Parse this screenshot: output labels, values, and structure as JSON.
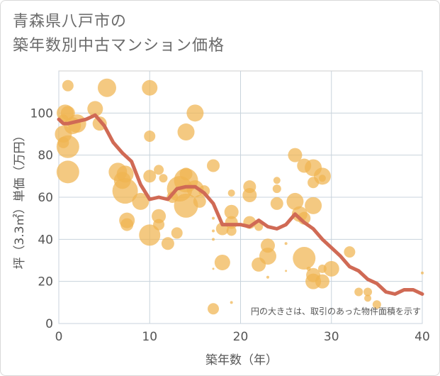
{
  "title": {
    "line1": "青森県八戸市の",
    "line2": "築年数別中古マンション価格"
  },
  "colors": {
    "bubble": "#f0b450",
    "line": "#d06a55",
    "grid": "#c8d3dc",
    "plot_border": "#cfcfcf"
  },
  "chart_data": {
    "type": "scatter",
    "xlabel": "築年数（年）",
    "ylabel": "坪（3.3㎡）単価（万円）",
    "xlim": [
      0,
      40
    ],
    "ylim": [
      0,
      120
    ],
    "xticks": [
      0,
      10,
      20,
      30,
      40
    ],
    "yticks": [
      0,
      20,
      40,
      60,
      80,
      100
    ],
    "grid": true,
    "note": "円の大きさは、取引のあった物件面積を示す",
    "bubbles": [
      {
        "x": 0.5,
        "y": 90,
        "s": 12
      },
      {
        "x": 0.5,
        "y": 86,
        "s": 8
      },
      {
        "x": 0.5,
        "y": 97,
        "s": 7
      },
      {
        "x": 0.7,
        "y": 100,
        "s": 12
      },
      {
        "x": 1,
        "y": 113,
        "s": 8
      },
      {
        "x": 1,
        "y": 100,
        "s": 10
      },
      {
        "x": 1,
        "y": 84,
        "s": 16
      },
      {
        "x": 1,
        "y": 72,
        "s": 16
      },
      {
        "x": 1.5,
        "y": 94,
        "s": 12
      },
      {
        "x": 2,
        "y": 95,
        "s": 13
      },
      {
        "x": 4,
        "y": 102,
        "s": 11
      },
      {
        "x": 4.5,
        "y": 95,
        "s": 10
      },
      {
        "x": 5.3,
        "y": 112,
        "s": 13
      },
      {
        "x": 6.5,
        "y": 72,
        "s": 13
      },
      {
        "x": 7,
        "y": 68,
        "s": 12
      },
      {
        "x": 7.3,
        "y": 71,
        "s": 12
      },
      {
        "x": 7.3,
        "y": 63,
        "s": 18
      },
      {
        "x": 7.5,
        "y": 49,
        "s": 11
      },
      {
        "x": 7.5,
        "y": 47,
        "s": 9
      },
      {
        "x": 9,
        "y": 58,
        "s": 12
      },
      {
        "x": 10,
        "y": 112,
        "s": 11
      },
      {
        "x": 10,
        "y": 89,
        "s": 8
      },
      {
        "x": 10,
        "y": 70,
        "s": 9
      },
      {
        "x": 10,
        "y": 42,
        "s": 15
      },
      {
        "x": 11,
        "y": 73,
        "s": 7
      },
      {
        "x": 11,
        "y": 51,
        "s": 10
      },
      {
        "x": 11,
        "y": 47,
        "s": 8
      },
      {
        "x": 11.5,
        "y": 69,
        "s": 6
      },
      {
        "x": 12,
        "y": 38,
        "s": 9
      },
      {
        "x": 12.5,
        "y": 60,
        "s": 8
      },
      {
        "x": 13,
        "y": 43,
        "s": 8
      },
      {
        "x": 13.3,
        "y": 64,
        "s": 18
      },
      {
        "x": 14,
        "y": 91,
        "s": 12
      },
      {
        "x": 14,
        "y": 71,
        "s": 9
      },
      {
        "x": 14,
        "y": 68,
        "s": 17
      },
      {
        "x": 14,
        "y": 56,
        "s": 17
      },
      {
        "x": 15,
        "y": 64,
        "s": 12
      },
      {
        "x": 15,
        "y": 100,
        "s": 12
      },
      {
        "x": 15.5,
        "y": 58,
        "s": 9
      },
      {
        "x": 16,
        "y": 63,
        "s": 8
      },
      {
        "x": 17,
        "y": 75,
        "s": 9
      },
      {
        "x": 17,
        "y": 50,
        "s": 2
      },
      {
        "x": 17,
        "y": 44,
        "s": 2
      },
      {
        "x": 17,
        "y": 40,
        "s": 2
      },
      {
        "x": 17,
        "y": 26,
        "s": 1.5
      },
      {
        "x": 17,
        "y": 7,
        "s": 8
      },
      {
        "x": 18,
        "y": 45,
        "s": 9
      },
      {
        "x": 18,
        "y": 29,
        "s": 11
      },
      {
        "x": 19,
        "y": 62,
        "s": 5
      },
      {
        "x": 19,
        "y": 53,
        "s": 10
      },
      {
        "x": 19,
        "y": 48,
        "s": 9
      },
      {
        "x": 19,
        "y": 44,
        "s": 7
      },
      {
        "x": 19,
        "y": 10,
        "s": 2
      },
      {
        "x": 21,
        "y": 65,
        "s": 9
      },
      {
        "x": 21,
        "y": 61,
        "s": 10
      },
      {
        "x": 21,
        "y": 48,
        "s": 9
      },
      {
        "x": 22,
        "y": 28,
        "s": 10
      },
      {
        "x": 22,
        "y": 46,
        "s": 6
      },
      {
        "x": 23,
        "y": 37,
        "s": 10
      },
      {
        "x": 23,
        "y": 32,
        "s": 12
      },
      {
        "x": 23,
        "y": 22,
        "s": 2
      },
      {
        "x": 24,
        "y": 68,
        "s": 5
      },
      {
        "x": 24,
        "y": 64,
        "s": 6
      },
      {
        "x": 24,
        "y": 57,
        "s": 9
      },
      {
        "x": 25,
        "y": 38,
        "s": 2
      },
      {
        "x": 25,
        "y": 25,
        "s": 1.5
      },
      {
        "x": 26,
        "y": 80,
        "s": 10
      },
      {
        "x": 26,
        "y": 58,
        "s": 12
      },
      {
        "x": 26.5,
        "y": 52,
        "s": 11
      },
      {
        "x": 27,
        "y": 75,
        "s": 10
      },
      {
        "x": 27,
        "y": 50,
        "s": 9
      },
      {
        "x": 27,
        "y": 31,
        "s": 16
      },
      {
        "x": 27.5,
        "y": 26,
        "s": 3
      },
      {
        "x": 28,
        "y": 74,
        "s": 12
      },
      {
        "x": 28,
        "y": 67,
        "s": 8
      },
      {
        "x": 28,
        "y": 56,
        "s": 12
      },
      {
        "x": 28,
        "y": 23,
        "s": 10
      },
      {
        "x": 28,
        "y": 20,
        "s": 11
      },
      {
        "x": 29,
        "y": 70,
        "s": 12
      },
      {
        "x": 29,
        "y": 69,
        "s": 5
      },
      {
        "x": 29,
        "y": 26,
        "s": 6
      },
      {
        "x": 29,
        "y": 20,
        "s": 10
      },
      {
        "x": 30,
        "y": 26,
        "s": 11
      },
      {
        "x": 32,
        "y": 34,
        "s": 8
      },
      {
        "x": 33,
        "y": 15,
        "s": 6
      },
      {
        "x": 34,
        "y": 15,
        "s": 6
      },
      {
        "x": 34,
        "y": 12,
        "s": 5
      },
      {
        "x": 35,
        "y": 9,
        "s": 6
      },
      {
        "x": 40,
        "y": 24,
        "s": 2
      }
    ],
    "trend": {
      "name": "",
      "x": [
        0,
        0.5,
        1,
        2,
        3,
        4,
        5,
        6,
        7,
        8,
        9,
        10,
        11,
        12,
        13,
        14,
        15,
        16,
        17,
        18,
        19,
        20,
        21,
        22,
        23,
        24,
        25,
        26,
        27,
        28,
        29,
        30,
        31,
        32,
        33,
        34,
        35,
        36,
        37,
        38,
        39,
        40
      ],
      "y": [
        97,
        95,
        95,
        96,
        97,
        99,
        94,
        86,
        81,
        77,
        66,
        59,
        60,
        59,
        64,
        65,
        65,
        62,
        57,
        47,
        47,
        47,
        46,
        49,
        46,
        45,
        47,
        52,
        48,
        45,
        40,
        36,
        32,
        27,
        25,
        21,
        19,
        15,
        14,
        16,
        16,
        14
      ]
    }
  }
}
